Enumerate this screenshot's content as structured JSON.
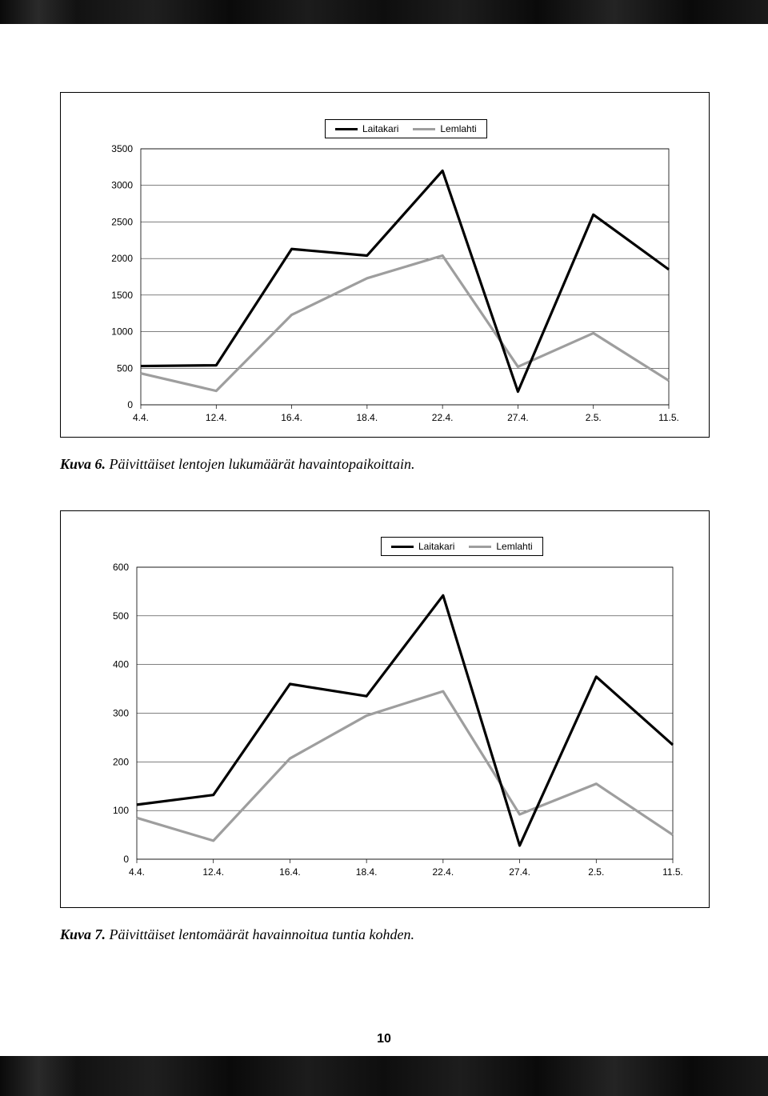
{
  "page_number": "10",
  "chart1": {
    "type": "line",
    "series": [
      {
        "name": "Laitakari",
        "color": "#000000",
        "line_width": 3.2,
        "values": [
          530,
          540,
          2130,
          2040,
          3200,
          180,
          2600,
          1850
        ]
      },
      {
        "name": "Lemlahti",
        "color": "#9e9e9e",
        "line_width": 3.2,
        "values": [
          430,
          190,
          1230,
          1730,
          2040,
          520,
          980,
          330
        ]
      }
    ],
    "x_labels": [
      "4.4.",
      "12.4.",
      "16.4.",
      "18.4.",
      "22.4.",
      "27.4.",
      "2.5.",
      "11.5."
    ],
    "ylim": [
      0,
      3500
    ],
    "ytick_step": 500,
    "label_fontsize": 12,
    "background_color": "#ffffff",
    "grid_color": "#000000",
    "plot_border_color": "#000000",
    "legend_position": "top"
  },
  "caption1_bold": "Kuva 6.",
  "caption1_text": " Päivittäiset lentojen lukumäärät havaintopaikoittain.",
  "chart2": {
    "type": "line",
    "series": [
      {
        "name": "Laitakari",
        "color": "#000000",
        "line_width": 3.2,
        "values": [
          112,
          132,
          360,
          335,
          542,
          28,
          375,
          235
        ]
      },
      {
        "name": "Lemlahti",
        "color": "#9e9e9e",
        "line_width": 3.2,
        "values": [
          85,
          38,
          207,
          295,
          345,
          92,
          155,
          50
        ]
      }
    ],
    "x_labels": [
      "4.4.",
      "12.4.",
      "16.4.",
      "18.4.",
      "22.4.",
      "27.4.",
      "2.5.",
      "11.5."
    ],
    "ylim": [
      0,
      600
    ],
    "ytick_step": 100,
    "label_fontsize": 12,
    "background_color": "#ffffff",
    "grid_color": "#000000",
    "plot_border_color": "#000000",
    "legend_position": "top"
  },
  "caption2_bold": "Kuva 7.",
  "caption2_text": " Päivittäiset lentomäärät havainnoitua tuntia kohden."
}
